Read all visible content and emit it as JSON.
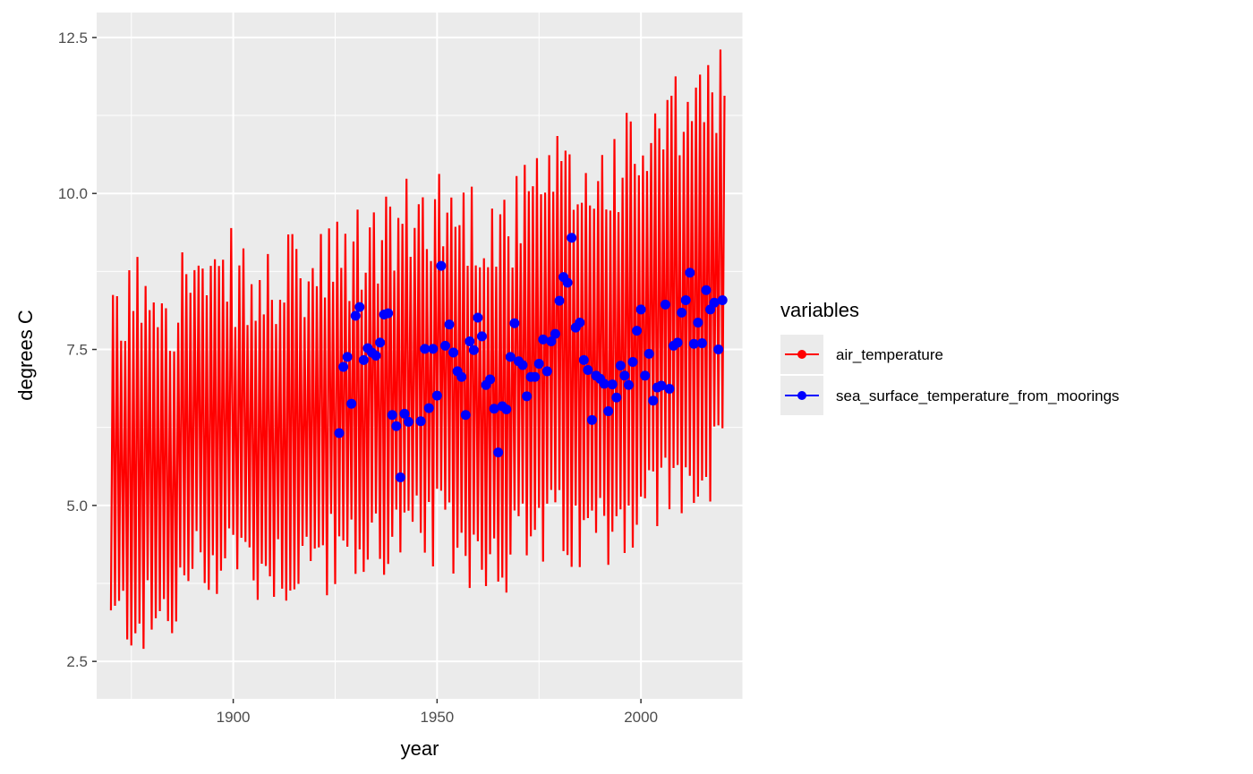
{
  "chart_data": {
    "type": "line",
    "xlabel": "year",
    "ylabel": "degrees C",
    "xlim": [
      1866.5,
      2025
    ],
    "ylim": [
      1.9,
      12.9
    ],
    "x_ticks": [
      1900,
      1950,
      2000
    ],
    "x_tick_labels": [
      "1900",
      "1950",
      "2000"
    ],
    "y_ticks": [
      2.5,
      5.0,
      7.5,
      10.0,
      12.5
    ],
    "y_tick_labels": [
      "2.5",
      "5.0",
      "7.5",
      "10.0",
      "12.5"
    ],
    "grid": true,
    "legend": {
      "title": "variables",
      "position": "right",
      "entries": [
        "air_temperature",
        "sea_surface_temperature_from_moorings"
      ]
    },
    "series": [
      {
        "name": "air_temperature",
        "color": "#ff0000",
        "style": "line",
        "annual_low": [
          [
            1870,
            3.1
          ],
          [
            1875,
            3.3
          ],
          [
            1880,
            3.1
          ],
          [
            1885,
            3.3
          ],
          [
            1890,
            4.0
          ],
          [
            1895,
            4.1
          ],
          [
            1900,
            4.4
          ],
          [
            1905,
            4.0
          ],
          [
            1910,
            4.1
          ],
          [
            1915,
            4.0
          ],
          [
            1920,
            4.2
          ],
          [
            1925,
            4.2
          ],
          [
            1930,
            4.2
          ],
          [
            1935,
            4.5
          ],
          [
            1940,
            4.5
          ],
          [
            1945,
            4.5
          ],
          [
            1950,
            4.6
          ],
          [
            1955,
            4.4
          ],
          [
            1960,
            4.3
          ],
          [
            1965,
            4.2
          ],
          [
            1970,
            4.4
          ],
          [
            1975,
            4.6
          ],
          [
            1980,
            4.6
          ],
          [
            1985,
            4.4
          ],
          [
            1990,
            4.7
          ],
          [
            1995,
            4.8
          ],
          [
            2000,
            5.0
          ],
          [
            2005,
            5.2
          ],
          [
            2010,
            5.3
          ],
          [
            2015,
            5.4
          ],
          [
            2020,
            5.7
          ]
        ],
        "annual_high": [
          [
            1870,
            7.5
          ],
          [
            1875,
            8.3
          ],
          [
            1880,
            8.6
          ],
          [
            1885,
            8.2
          ],
          [
            1890,
            8.8
          ],
          [
            1895,
            8.2
          ],
          [
            1900,
            8.7
          ],
          [
            1905,
            8.2
          ],
          [
            1910,
            8.5
          ],
          [
            1915,
            8.6
          ],
          [
            1920,
            8.6
          ],
          [
            1925,
            8.8
          ],
          [
            1930,
            9.0
          ],
          [
            1935,
            9.2
          ],
          [
            1940,
            9.4
          ],
          [
            1945,
            9.5
          ],
          [
            1950,
            9.8
          ],
          [
            1955,
            9.6
          ],
          [
            1960,
            9.5
          ],
          [
            1965,
            9.4
          ],
          [
            1970,
            9.6
          ],
          [
            1975,
            10.0
          ],
          [
            1980,
            10.2
          ],
          [
            1985,
            10.0
          ],
          [
            1990,
            10.2
          ],
          [
            1995,
            10.5
          ],
          [
            2000,
            10.6
          ],
          [
            2005,
            10.8
          ],
          [
            2010,
            11.2
          ],
          [
            2015,
            11.4
          ],
          [
            2020,
            11.9
          ]
        ],
        "seed": 12345,
        "x_start": 1870,
        "x_end": 2020.5
      },
      {
        "name": "sea_surface_temperature_from_moorings",
        "color": "#0000ff",
        "style": "points",
        "points": [
          [
            1926,
            6.16
          ],
          [
            1927,
            7.22
          ],
          [
            1928,
            7.38
          ],
          [
            1929,
            6.63
          ],
          [
            1930,
            8.04
          ],
          [
            1931,
            8.18
          ],
          [
            1932,
            7.33
          ],
          [
            1933,
            7.52
          ],
          [
            1934,
            7.45
          ],
          [
            1935,
            7.4
          ],
          [
            1936,
            7.61
          ],
          [
            1937,
            8.06
          ],
          [
            1938,
            8.08
          ],
          [
            1939,
            6.45
          ],
          [
            1940,
            6.27
          ],
          [
            1941,
            5.45
          ],
          [
            1942,
            6.47
          ],
          [
            1943,
            6.34
          ],
          [
            1946,
            6.35
          ],
          [
            1947,
            7.51
          ],
          [
            1948,
            6.56
          ],
          [
            1949,
            7.51
          ],
          [
            1950,
            6.76
          ],
          [
            1951,
            8.84
          ],
          [
            1952,
            7.56
          ],
          [
            1953,
            7.9
          ],
          [
            1954,
            7.45
          ],
          [
            1955,
            7.15
          ],
          [
            1956,
            7.06
          ],
          [
            1957,
            6.45
          ],
          [
            1958,
            7.63
          ],
          [
            1959,
            7.49
          ],
          [
            1960,
            8.01
          ],
          [
            1961,
            7.71
          ],
          [
            1962,
            6.93
          ],
          [
            1963,
            7.02
          ],
          [
            1964,
            6.55
          ],
          [
            1965,
            5.85
          ],
          [
            1966,
            6.59
          ],
          [
            1967,
            6.54
          ],
          [
            1968,
            7.38
          ],
          [
            1969,
            7.92
          ],
          [
            1970,
            7.31
          ],
          [
            1971,
            7.25
          ],
          [
            1972,
            6.75
          ],
          [
            1973,
            7.06
          ],
          [
            1974,
            7.06
          ],
          [
            1975,
            7.27
          ],
          [
            1976,
            7.66
          ],
          [
            1977,
            7.15
          ],
          [
            1978,
            7.63
          ],
          [
            1979,
            7.75
          ],
          [
            1980,
            8.28
          ],
          [
            1981,
            8.66
          ],
          [
            1982,
            8.57
          ],
          [
            1983,
            9.29
          ],
          [
            1984,
            7.85
          ],
          [
            1985,
            7.93
          ],
          [
            1986,
            7.33
          ],
          [
            1987,
            7.17
          ],
          [
            1988,
            6.37
          ],
          [
            1989,
            7.08
          ],
          [
            1990,
            7.03
          ],
          [
            1991,
            6.95
          ],
          [
            1992,
            6.51
          ],
          [
            1993,
            6.94
          ],
          [
            1994,
            6.73
          ],
          [
            1995,
            7.24
          ],
          [
            1996,
            7.08
          ],
          [
            1997,
            6.93
          ],
          [
            1998,
            7.3
          ],
          [
            1999,
            7.8
          ],
          [
            2000,
            8.14
          ],
          [
            2001,
            7.08
          ],
          [
            2002,
            7.43
          ],
          [
            2003,
            6.68
          ],
          [
            2004,
            6.89
          ],
          [
            2005,
            6.92
          ],
          [
            2006,
            8.22
          ],
          [
            2007,
            6.87
          ],
          [
            2008,
            7.56
          ],
          [
            2009,
            7.61
          ],
          [
            2010,
            8.09
          ],
          [
            2011,
            8.29
          ],
          [
            2012,
            8.73
          ],
          [
            2013,
            7.59
          ],
          [
            2014,
            7.93
          ],
          [
            2015,
            7.6
          ],
          [
            2016,
            8.45
          ],
          [
            2017,
            8.14
          ],
          [
            2018,
            8.25
          ],
          [
            2019,
            7.5
          ],
          [
            2020,
            8.29
          ]
        ]
      }
    ]
  }
}
